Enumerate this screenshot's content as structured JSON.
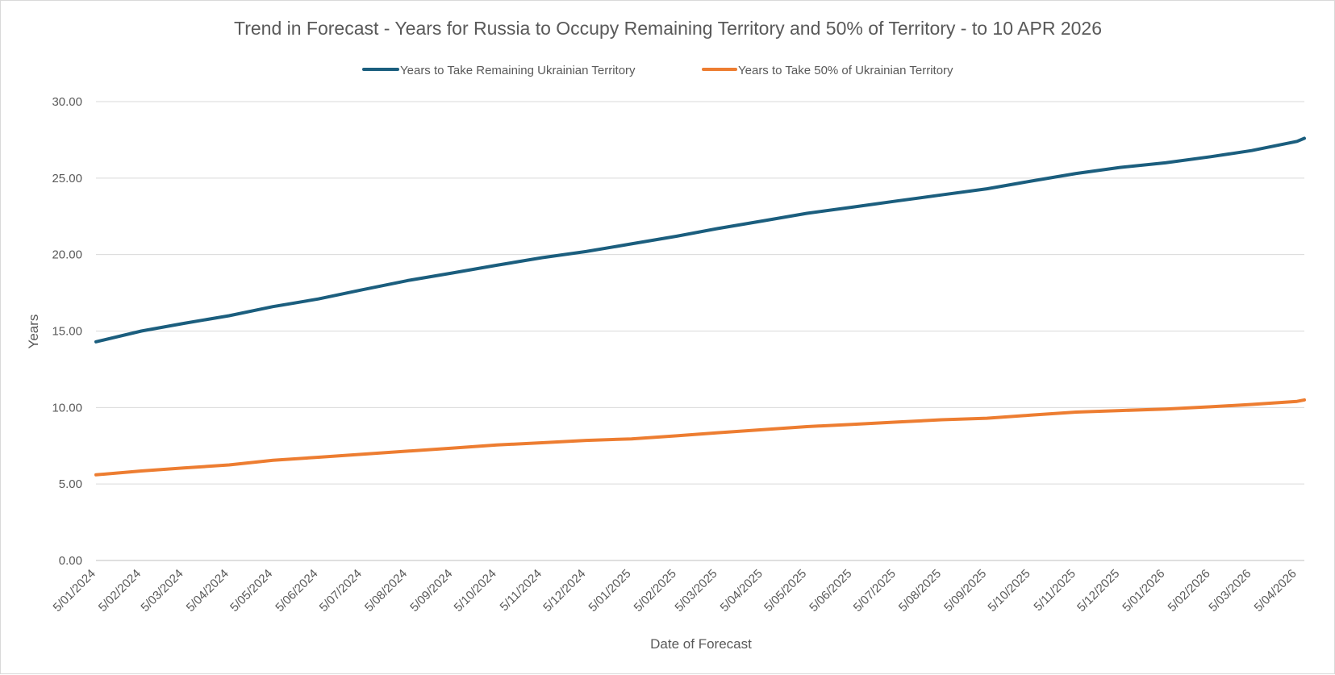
{
  "chart_data": {
    "type": "line",
    "title": "Trend in Forecast - Years for Russia to Occupy Remaining Territory and 50% of Territory - to 10 APR 2026",
    "xlabel": "Date of Forecast",
    "ylabel": "Years",
    "ylim": [
      0,
      30
    ],
    "y_ticks": [
      "0.00",
      "5.00",
      "10.00",
      "15.00",
      "20.00",
      "25.00",
      "30.00"
    ],
    "grid": true,
    "legend_position": "top",
    "x_ticks": [
      "5/01/2024",
      "5/02/2024",
      "5/03/2024",
      "5/04/2024",
      "5/05/2024",
      "5/06/2024",
      "5/07/2024",
      "5/08/2024",
      "5/09/2024",
      "5/10/2024",
      "5/11/2024",
      "5/12/2024",
      "5/01/2025",
      "5/02/2025",
      "5/03/2025",
      "5/04/2025",
      "5/05/2025",
      "5/06/2025",
      "5/07/2025",
      "5/08/2025",
      "5/09/2025",
      "5/10/2025",
      "5/11/2025",
      "5/12/2025",
      "5/01/2026",
      "5/02/2026",
      "5/03/2026",
      "5/04/2026"
    ],
    "x": [
      "5/01/2024",
      "5/02/2024",
      "5/03/2024",
      "5/04/2024",
      "5/05/2024",
      "5/06/2024",
      "5/07/2024",
      "5/08/2024",
      "5/09/2024",
      "5/10/2024",
      "5/11/2024",
      "5/12/2024",
      "5/01/2025",
      "5/02/2025",
      "5/03/2025",
      "5/04/2025",
      "5/05/2025",
      "5/06/2025",
      "5/07/2025",
      "5/08/2025",
      "5/09/2025",
      "5/10/2025",
      "5/11/2025",
      "5/12/2025",
      "5/01/2026",
      "5/02/2026",
      "5/03/2026",
      "5/04/2026",
      "10/04/2026"
    ],
    "series": [
      {
        "name": "Years to Take Remaining Ukrainian Territory",
        "color": "#1b5e7e",
        "values": [
          14.3,
          15.0,
          15.5,
          16.0,
          16.6,
          17.1,
          17.7,
          18.3,
          18.8,
          19.3,
          19.8,
          20.2,
          20.7,
          21.2,
          21.7,
          22.2,
          22.7,
          23.1,
          23.5,
          23.9,
          24.3,
          24.8,
          25.3,
          25.7,
          26.0,
          26.4,
          26.8,
          27.4,
          27.6
        ]
      },
      {
        "name": "Years to Take  50% of Ukrainian Territory",
        "color": "#ed7d31",
        "values": [
          5.6,
          5.85,
          6.05,
          6.25,
          6.55,
          6.75,
          6.95,
          7.15,
          7.35,
          7.55,
          7.7,
          7.85,
          7.95,
          8.15,
          8.35,
          8.55,
          8.75,
          8.9,
          9.05,
          9.2,
          9.3,
          9.5,
          9.7,
          9.8,
          9.9,
          10.05,
          10.2,
          10.4,
          10.5
        ]
      }
    ]
  }
}
